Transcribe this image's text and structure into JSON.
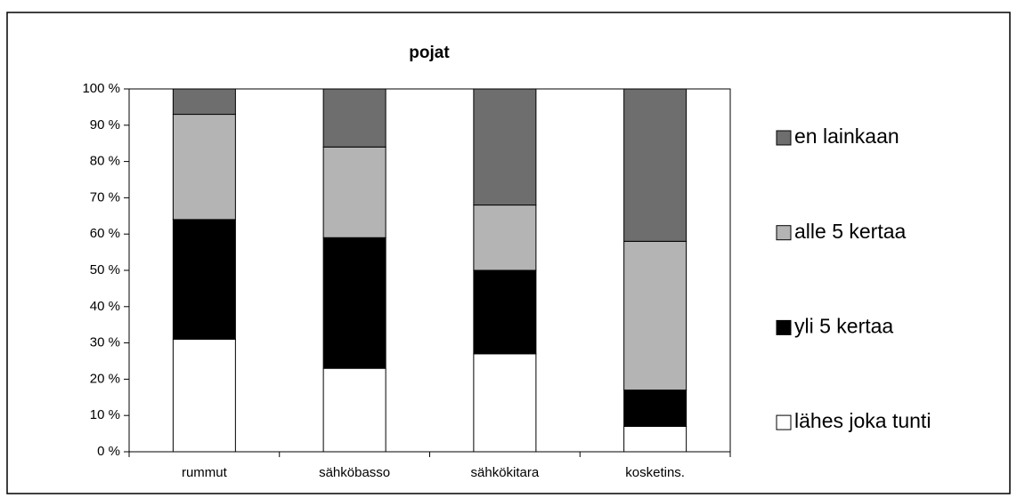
{
  "chart_data": {
    "type": "stacked_bar",
    "title": "pojat",
    "categories": [
      "rummut",
      "sähköbasso",
      "sähkökitara",
      "kosketins."
    ],
    "series": [
      {
        "name": "lähes joka tunti",
        "color": "#ffffff",
        "values": [
          31,
          23,
          27,
          7
        ]
      },
      {
        "name": "yli 5 kertaa",
        "color": "#000000",
        "values": [
          33,
          36,
          23,
          10
        ]
      },
      {
        "name": "alle 5 kertaa",
        "color": "#b4b4b4",
        "values": [
          29,
          25,
          18,
          41
        ]
      },
      {
        "name": "en lainkaan",
        "color": "#6e6e6e",
        "values": [
          7,
          16,
          32,
          42
        ]
      }
    ],
    "ylim": [
      0,
      100
    ],
    "yticks": [
      {
        "value": 0,
        "label": "0 %"
      },
      {
        "value": 10,
        "label": "10 %"
      },
      {
        "value": 20,
        "label": "20 %"
      },
      {
        "value": 30,
        "label": "30 %"
      },
      {
        "value": 40,
        "label": "40 %"
      },
      {
        "value": 50,
        "label": "50 %"
      },
      {
        "value": 60,
        "label": "60 %"
      },
      {
        "value": 70,
        "label": "70 %"
      },
      {
        "value": 80,
        "label": "80 %"
      },
      {
        "value": 90,
        "label": "90 %"
      },
      {
        "value": 100,
        "label": "100 %"
      }
    ],
    "legend": "right"
  }
}
